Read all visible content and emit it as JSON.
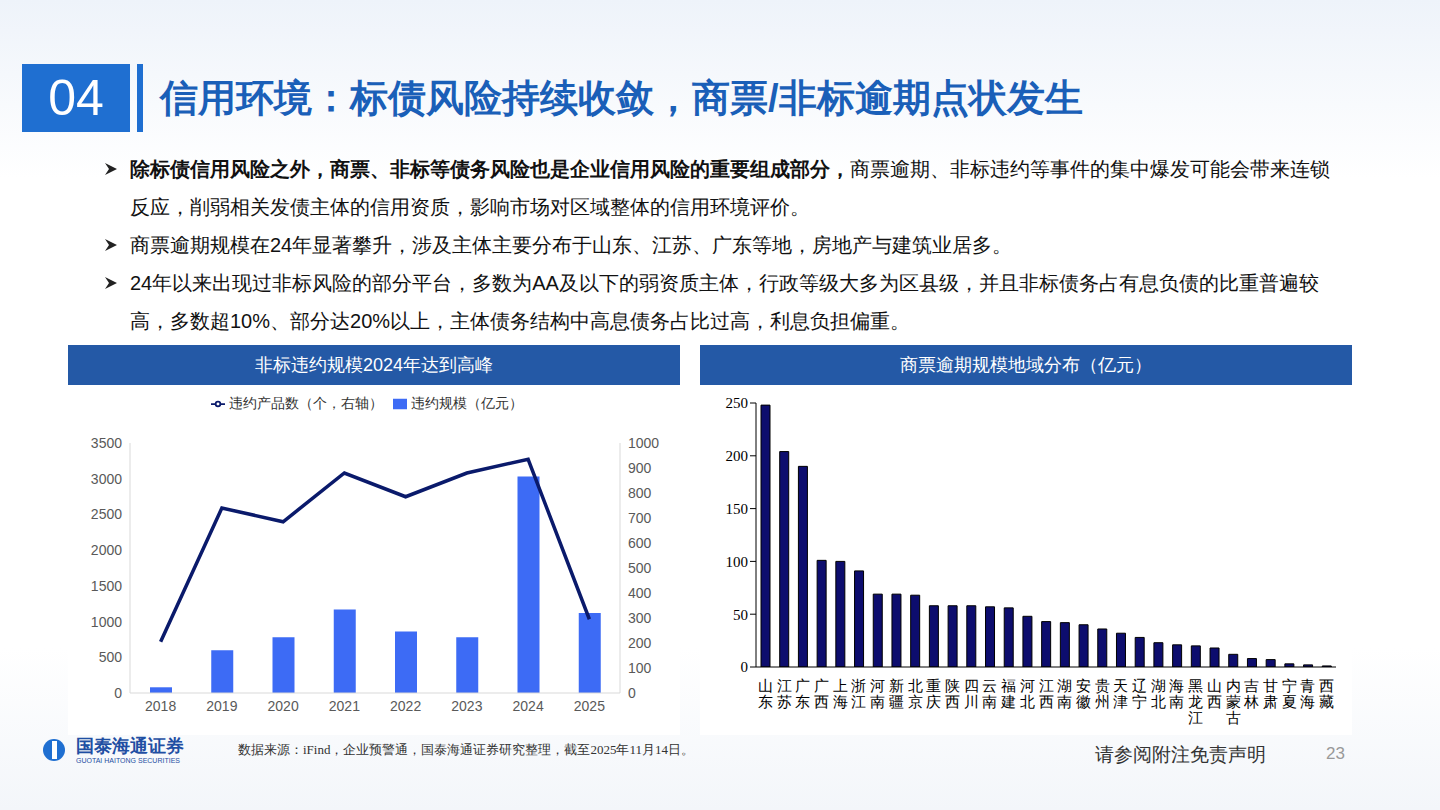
{
  "slide": {
    "section_number": "04",
    "title": "信用环境：标债风险持续收敛，商票/非标逾期点状发生",
    "bullets": [
      {
        "bold": "除标债信用风险之外，商票、非标等债务风险也是企业信用风险的重要组成部分，",
        "text": "商票逾期、非标违约等事件的集中爆发可能会带来连锁反应，削弱相关发债主体的信用资质，影响市场对区域整体的信用环境评价。"
      },
      {
        "text": "商票逾期规模在24年显著攀升，涉及主体主要分布于山东、江苏、广东等地，房地产与建筑业居多。"
      },
      {
        "text": "24年以来出现过非标风险的部分平台，多数为AA及以下的弱资质主体，行政等级大多为区县级，并且非标债务占有息负债的比重普遍较高，多数超10%、部分达20%以上，主体债务结构中高息债务占比过高，利息负担偏重。"
      }
    ],
    "source": "数据来源：iFind，企业预警通，国泰海通证券研究整理，截至2025年11月14日。",
    "disclaimer": "请参阅附注免责声明",
    "page": "23",
    "logo": {
      "name": "国泰海通证券",
      "name_en": "GUOTAI HAITONG SECURITIES"
    }
  },
  "chart_data": [
    {
      "type": "bar",
      "title": "非标违约规模2024年达到高峰",
      "categories": [
        "2018",
        "2019",
        "2020",
        "2021",
        "2022",
        "2023",
        "2024",
        "2025"
      ],
      "series": [
        {
          "name": "违约规模（亿元）",
          "type": "bar",
          "color": "#3d6bf5",
          "values": [
            80,
            600,
            780,
            1170,
            860,
            780,
            3030,
            1120
          ]
        },
        {
          "name": "违约产品数（个，右轴）",
          "type": "line",
          "axis": "y2",
          "color": "#0a1a6b",
          "values": [
            205,
            740,
            685,
            880,
            785,
            880,
            935,
            295
          ]
        }
      ],
      "ylim": [
        0,
        3500
      ],
      "yticks": [
        0,
        500,
        1000,
        1500,
        2000,
        2500,
        3000,
        3500
      ],
      "y2lim": [
        0,
        1000
      ],
      "y2ticks": [
        0,
        100,
        200,
        300,
        400,
        500,
        600,
        700,
        800,
        900,
        1000
      ],
      "legend": "top",
      "grid": false
    },
    {
      "type": "bar",
      "title": "商票逾期规模地域分布（亿元）",
      "categories": [
        "山东",
        "江苏",
        "广东",
        "广西",
        "上海",
        "浙江",
        "河南",
        "新疆",
        "北京",
        "重庆",
        "陕西",
        "四川",
        "云南",
        "福建",
        "河北",
        "江西",
        "湖南",
        "安徽",
        "贵州",
        "天津",
        "辽宁",
        "湖北",
        "海南",
        "黑龙江",
        "山西",
        "内蒙古",
        "吉林",
        "甘肃",
        "宁夏",
        "青海",
        "西藏"
      ],
      "values": [
        248,
        204,
        190,
        101,
        100,
        91,
        69,
        69,
        68,
        58,
        58,
        58,
        57,
        56,
        48,
        43,
        42,
        40,
        36,
        32,
        28,
        23,
        21,
        20,
        18,
        12,
        8,
        7,
        3,
        2,
        1
      ],
      "color": "#0d0d6e",
      "ylim": [
        0,
        250
      ],
      "yticks": [
        0,
        50,
        100,
        150,
        200,
        250
      ],
      "grid": false
    }
  ]
}
